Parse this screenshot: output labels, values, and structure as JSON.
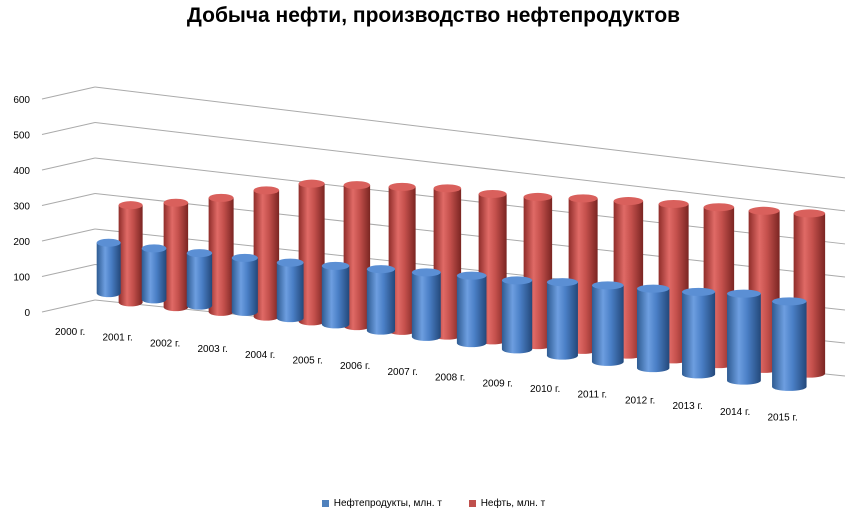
{
  "chart_data": {
    "type": "bar",
    "title": "Добыча нефти, производство нефтепродуктов",
    "categories": [
      "2000 г.",
      "2001 г.",
      "2002 г.",
      "2003 г.",
      "2004 г.",
      "2005 г.",
      "2006 г.",
      "2007 г.",
      "2008 г.",
      "2009 г.",
      "2010 г.",
      "2011 г.",
      "2012 г.",
      "2013 г.",
      "2014 г.",
      "2015 г."
    ],
    "series": [
      {
        "name": "Нефтепродукты,  млн. т",
        "color": "#4f81bd",
        "values": [
          168,
          170,
          175,
          180,
          185,
          195,
          205,
          215,
          225,
          230,
          245,
          255,
          265,
          275,
          290,
          285
        ]
      },
      {
        "name": "Нефть,  млн. т",
        "color": "#c0504d",
        "values": [
          324,
          348,
          380,
          421,
          459,
          470,
          480,
          491,
          488,
          494,
          505,
          512,
          518,
          523,
          527,
          534
        ]
      }
    ],
    "ylim": [
      0,
      600
    ],
    "yticks": [
      0,
      100,
      200,
      300,
      400,
      500,
      600
    ],
    "grid": true,
    "legend": "bottom",
    "style": "3d-cylinder"
  }
}
